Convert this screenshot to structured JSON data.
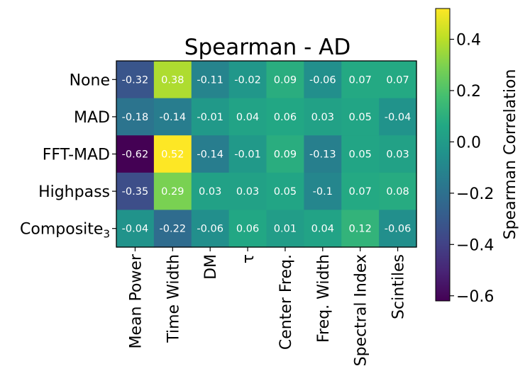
{
  "chart_data": {
    "type": "heatmap",
    "title": "Spearman - AD",
    "rows": [
      "None",
      "MAD",
      "FFT-MAD",
      "Highpass",
      "Composite"
    ],
    "row_subscripts": [
      "",
      "",
      "",
      "",
      "3"
    ],
    "columns": [
      "Mean Power",
      "Time Width",
      "DM",
      "τ",
      "Center Freq.",
      "Freq. Width",
      "Spectral Index",
      "Scintiles"
    ],
    "values": [
      [
        -0.32,
        0.38,
        -0.11,
        -0.02,
        0.09,
        -0.06,
        0.07,
        0.07
      ],
      [
        -0.18,
        -0.14,
        -0.01,
        0.04,
        0.06,
        0.03,
        0.05,
        -0.04
      ],
      [
        -0.62,
        0.52,
        -0.14,
        -0.01,
        0.09,
        -0.13,
        0.05,
        0.03
      ],
      [
        -0.35,
        0.29,
        0.03,
        0.03,
        0.05,
        -0.1,
        0.07,
        0.08
      ],
      [
        -0.04,
        -0.22,
        -0.06,
        0.06,
        0.01,
        0.04,
        0.12,
        -0.06
      ]
    ],
    "value_labels": [
      [
        "-0.32",
        "0.38",
        "-0.11",
        "-0.02",
        "0.09",
        "-0.06",
        "0.07",
        "0.07"
      ],
      [
        "-0.18",
        "-0.14",
        "-0.01",
        "0.04",
        "0.06",
        "0.03",
        "0.05",
        "-0.04"
      ],
      [
        "-0.62",
        "0.52",
        "-0.14",
        "-0.01",
        "0.09",
        "-0.13",
        "0.05",
        "0.03"
      ],
      [
        "-0.35",
        "0.29",
        "0.03",
        "0.03",
        "0.05",
        "-0.1",
        "0.07",
        "0.08"
      ],
      [
        "-0.04",
        "-0.22",
        "-0.06",
        "0.06",
        "0.01",
        "0.04",
        "0.12",
        "-0.06"
      ]
    ],
    "colormap": "viridis",
    "vmin": -0.62,
    "vmax": 0.52,
    "colorbar": {
      "label": "Spearman Correlation",
      "ticks": [
        0.4,
        0.2,
        0.0,
        -0.2,
        -0.4,
        -0.6
      ],
      "tick_labels": [
        "0.4",
        "0.2",
        "0.0",
        "−0.2",
        "−0.4",
        "−0.6"
      ]
    }
  }
}
